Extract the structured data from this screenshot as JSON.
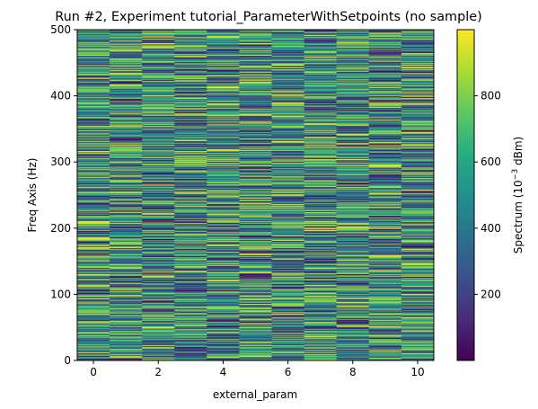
{
  "chart_data": {
    "type": "heatmap",
    "title": "Run #2, Experiment tutorial_ParameterWithSetpoints (no sample)",
    "xlabel": "external_param",
    "ylabel": "Freq Axis (Hz)",
    "colorbar_label_prefix": "Spectrum (10",
    "colorbar_label_exp": "−3",
    "colorbar_label_suffix": " dBm)",
    "xlim": [
      -0.5,
      10.5
    ],
    "ylim": [
      0,
      500
    ],
    "x_ticks": [
      0,
      2,
      4,
      6,
      8,
      10
    ],
    "y_ticks": [
      0,
      100,
      200,
      300,
      400,
      500
    ],
    "colorbar_ticks": [
      200,
      400,
      600,
      800
    ],
    "colorbar_range": [
      0,
      1000
    ],
    "colormap": "viridis",
    "x_values": [
      0,
      1,
      2,
      3,
      4,
      5,
      6,
      7,
      8,
      9,
      10
    ],
    "y_values": {
      "start": 0,
      "stop": 500,
      "count": 500
    },
    "data_note": "random values, approximately uniform in [0, 1000]"
  }
}
